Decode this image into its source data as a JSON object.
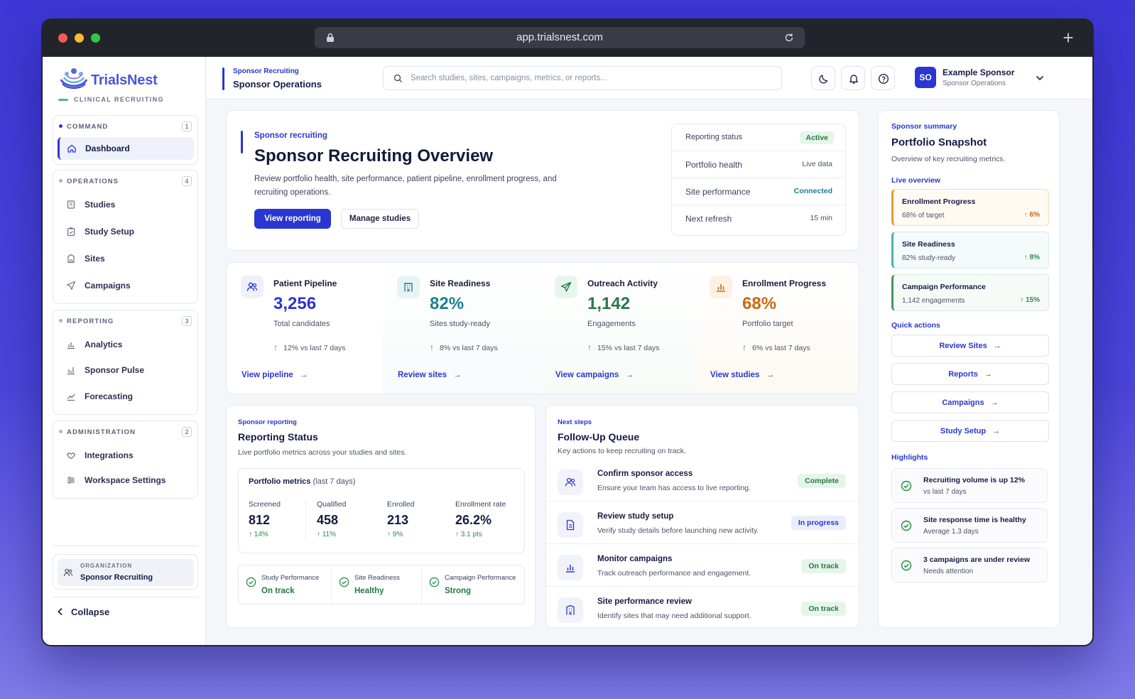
{
  "browser": {
    "url": "app.trialsnest.com",
    "new_tab": "+"
  },
  "brand": {
    "name": "TrialsNest",
    "tagline": "CLINICAL RECRUITING"
  },
  "nav": {
    "groups": [
      {
        "title": "COMMAND",
        "count": "1",
        "items": [
          {
            "label": "Dashboard",
            "icon": "home-icon"
          }
        ]
      },
      {
        "title": "OPERATIONS",
        "count": "4",
        "items": [
          {
            "label": "Studies"
          },
          {
            "label": "Study Setup"
          },
          {
            "label": "Sites"
          },
          {
            "label": "Campaigns"
          }
        ]
      },
      {
        "title": "REPORTING",
        "count": "3",
        "items": [
          {
            "label": "Analytics"
          },
          {
            "label": "Sponsor Pulse"
          },
          {
            "label": "Forecasting"
          }
        ]
      },
      {
        "title": "ADMINISTRATION",
        "count": "2",
        "items": [
          {
            "label": "Integrations"
          },
          {
            "label": "Workspace Settings"
          }
        ]
      }
    ],
    "org_label": "ORGANIZATION",
    "org_name": "Sponsor Recruiting",
    "collapse": "Collapse"
  },
  "topbar": {
    "crumb": "Sponsor Recruiting",
    "title": "Sponsor Operations",
    "search_placeholder": "Search studies, sites, campaigns, metrics, or reports...",
    "user_initials": "SO",
    "user_name": "Example Sponsor",
    "user_role": "Sponsor Operations"
  },
  "hero": {
    "kicker": "Sponsor recruiting",
    "title": "Sponsor Recruiting Overview",
    "desc_line1": "Review portfolio health, site performance, patient pipeline, enrollment progress, and",
    "desc_line2": "recruiting operations.",
    "primary": "View reporting",
    "secondary": "Manage studies",
    "status": [
      {
        "k": "Reporting status",
        "v": "Active"
      },
      {
        "k": "Portfolio health",
        "v": "Live data"
      },
      {
        "k": "Site performance",
        "v": "Connected"
      },
      {
        "k": "Next refresh",
        "v": "15 min"
      }
    ]
  },
  "metrics": [
    {
      "title": "Patient Pipeline",
      "value": "3,256",
      "sub": "Total candidates",
      "change": "12%",
      "period": "vs last 7 days",
      "link": "View pipeline",
      "color": "#2a36d1"
    },
    {
      "title": "Site Readiness",
      "value": "82%",
      "sub": "Sites study-ready",
      "change": "8%",
      "period": "vs last 7 days",
      "link": "Review sites",
      "color": "#1f7f8f"
    },
    {
      "title": "Outreach Activity",
      "value": "1,142",
      "sub": "Engagements",
      "change": "15%",
      "period": "vs last 7 days",
      "link": "View campaigns",
      "color": "#27784a"
    },
    {
      "title": "Enrollment Progress",
      "value": "68%",
      "sub": "Portfolio target",
      "change": "6%",
      "period": "vs last 7 days",
      "link": "View studies",
      "color": "#c8690f"
    }
  ],
  "reporting": {
    "kicker": "Sponsor reporting",
    "title": "Reporting Status",
    "desc": "Live portfolio metrics across your studies and sites.",
    "box_title": "Portfolio metrics",
    "box_period": "(last 7 days)",
    "stats": [
      {
        "label": "Screened",
        "value": "812",
        "change": "14%"
      },
      {
        "label": "Qualified",
        "value": "458",
        "change": "11%"
      },
      {
        "label": "Enrolled",
        "value": "213",
        "change": "9%"
      },
      {
        "label": "Enrollment rate",
        "value": "26.2%",
        "change": "3.1 pts"
      }
    ],
    "mini": [
      {
        "label": "Study Performance",
        "value": "On track"
      },
      {
        "label": "Site Readiness",
        "value": "Healthy"
      },
      {
        "label": "Campaign Performance",
        "value": "Strong"
      }
    ]
  },
  "followup": {
    "kicker": "Next steps",
    "title": "Follow-Up Queue",
    "desc": "Key actions to keep recruiting on track.",
    "items": [
      {
        "title": "Confirm sponsor access",
        "desc": "Ensure your team has access to live reporting.",
        "status": "Complete"
      },
      {
        "title": "Review study setup",
        "desc": "Verify study details before launching new activity.",
        "status": "In progress"
      },
      {
        "title": "Monitor campaigns",
        "desc": "Track outreach performance and engagement.",
        "status": "On track"
      },
      {
        "title": "Site performance review",
        "desc": "Identify sites that may need additional support.",
        "status": "On track"
      }
    ]
  },
  "summary": {
    "kicker": "Sponsor summary",
    "title": "Portfolio Snapshot",
    "desc": "Overview of key recruiting metrics.",
    "live": "Live overview",
    "snapshot": [
      {
        "title": "Enrollment Progress",
        "desc": "68% of target",
        "change": "6%"
      },
      {
        "title": "Site Readiness",
        "desc": "82% study-ready",
        "change": "8%"
      },
      {
        "title": "Campaign Performance",
        "desc": "1,142 engagements",
        "change": "15%"
      }
    ],
    "quick_title": "Quick actions",
    "quick": [
      "Review Sites",
      "Reports",
      "Campaigns",
      "Study Setup"
    ],
    "highlights_title": "Highlights",
    "highlights": [
      {
        "title": "Recruiting volume is up 12%",
        "desc": "vs last 7 days"
      },
      {
        "title": "Site response time is healthy",
        "desc": "Average 1.3 days"
      },
      {
        "title": "3 campaigns are under review",
        "desc": "Needs attention"
      }
    ]
  }
}
